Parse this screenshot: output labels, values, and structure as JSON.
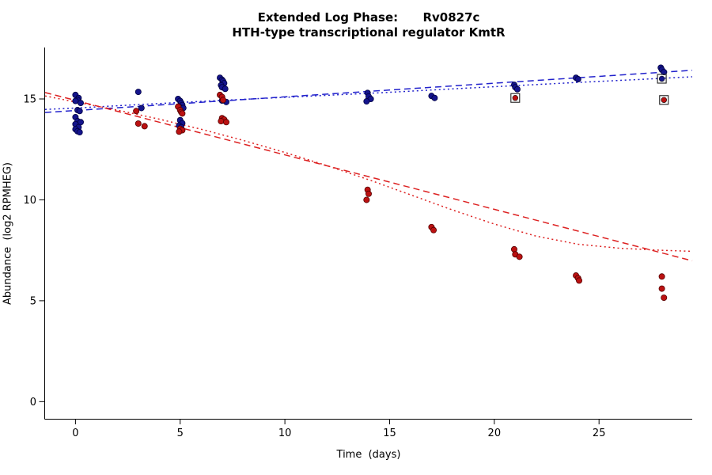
{
  "chart_data": {
    "type": "scatter",
    "title": "Extended Log Phase:      Rv0827c",
    "subtitle": "HTH-type transcriptional regulator KmtR",
    "xlabel": "Time  (days)",
    "ylabel": "Abundance  (log2 RPMHEG)",
    "xlim": [
      -1.45,
      29.45
    ],
    "ylim": [
      -0.85,
      17.55
    ],
    "xticks": [
      0,
      5,
      10,
      15,
      20,
      25
    ],
    "yticks": [
      0,
      5,
      10,
      15
    ],
    "grid": false,
    "legend": "none",
    "series": [
      {
        "name": "blue-condition",
        "color": "#14148C",
        "edge": "#000040",
        "points": [
          [
            0,
            15.2
          ],
          [
            0.15,
            15.05
          ],
          [
            0.1,
            14.95
          ],
          [
            0,
            14.9
          ],
          [
            0.25,
            14.8
          ],
          [
            0.1,
            14.45
          ],
          [
            0.2,
            14.4
          ],
          [
            0,
            14.1
          ],
          [
            0.1,
            13.9
          ],
          [
            0.25,
            13.85
          ],
          [
            0,
            13.75
          ],
          [
            0.15,
            13.6
          ],
          [
            0,
            13.5
          ],
          [
            0.1,
            13.4
          ],
          [
            0.2,
            13.35
          ],
          [
            3,
            15.35
          ],
          [
            3.15,
            14.55
          ],
          [
            4.9,
            15.0
          ],
          [
            5,
            14.9
          ],
          [
            5.05,
            14.8
          ],
          [
            5.1,
            14.7
          ],
          [
            4.95,
            14.62
          ],
          [
            5.15,
            14.55
          ],
          [
            5,
            13.95
          ],
          [
            5.1,
            13.8
          ],
          [
            4.95,
            13.68
          ],
          [
            5.05,
            13.6
          ],
          [
            6.9,
            16.05
          ],
          [
            7,
            15.95
          ],
          [
            7.05,
            15.88
          ],
          [
            7.1,
            15.78
          ],
          [
            6.95,
            15.68
          ],
          [
            7,
            15.58
          ],
          [
            7.15,
            15.5
          ],
          [
            7,
            14.92
          ],
          [
            7.2,
            14.85
          ],
          [
            13.95,
            15.3
          ],
          [
            14,
            15.12
          ],
          [
            14.1,
            15.0
          ],
          [
            13.9,
            14.88
          ],
          [
            17,
            15.15
          ],
          [
            17.15,
            15.05
          ],
          [
            20.95,
            15.7
          ],
          [
            21,
            15.58
          ],
          [
            21.1,
            15.48
          ],
          [
            23.9,
            16.05
          ],
          [
            24,
            15.98
          ],
          [
            27.95,
            16.55
          ],
          [
            28,
            16.45
          ],
          [
            28.1,
            16.33
          ]
        ]
      },
      {
        "name": "red-condition",
        "color": "#BB1111",
        "edge": "#550000",
        "points": [
          [
            2.9,
            14.4
          ],
          [
            3,
            13.78
          ],
          [
            3.3,
            13.65
          ],
          [
            4.9,
            14.62
          ],
          [
            5,
            14.45
          ],
          [
            5.05,
            14.35
          ],
          [
            5.1,
            14.28
          ],
          [
            5,
            13.52
          ],
          [
            5.1,
            13.45
          ],
          [
            4.95,
            13.38
          ],
          [
            6.9,
            15.2
          ],
          [
            7,
            15.1
          ],
          [
            7.05,
            14.95
          ],
          [
            7,
            14.05
          ],
          [
            7.1,
            13.98
          ],
          [
            6.95,
            13.9
          ],
          [
            7.2,
            13.85
          ],
          [
            13.95,
            10.5
          ],
          [
            14,
            10.3
          ],
          [
            13.9,
            10.0
          ],
          [
            17,
            8.65
          ],
          [
            17.1,
            8.5
          ],
          [
            20.95,
            7.55
          ],
          [
            21,
            7.3
          ],
          [
            21.2,
            7.18
          ],
          [
            23.9,
            6.25
          ],
          [
            24,
            6.12
          ],
          [
            24.05,
            6.0
          ],
          [
            28,
            6.2
          ],
          [
            28,
            5.6
          ],
          [
            28.1,
            5.15
          ]
        ]
      }
    ],
    "flagged_points": [
      {
        "x": 21,
        "y": 15.05,
        "color": "#BB1111"
      },
      {
        "x": 28,
        "y": 16.0,
        "color": "#14148C"
      },
      {
        "x": 28.1,
        "y": 14.95,
        "color": "#BB1111"
      }
    ],
    "trend_lines": [
      {
        "name": "blue-dashed-linear-fit",
        "color": "#2222CC",
        "dash": "dashed",
        "points": [
          [
            -1.45,
            14.33
          ],
          [
            29.45,
            16.42
          ]
        ]
      },
      {
        "name": "blue-dotted-fit",
        "color": "#2222CC",
        "dash": "dotted",
        "points": [
          [
            -1.45,
            14.48
          ],
          [
            0,
            14.55
          ],
          [
            3,
            14.72
          ],
          [
            6,
            14.88
          ],
          [
            9,
            15.03
          ],
          [
            12,
            15.18
          ],
          [
            15,
            15.33
          ],
          [
            18,
            15.5
          ],
          [
            21,
            15.66
          ],
          [
            24,
            15.82
          ],
          [
            27,
            15.97
          ],
          [
            29.45,
            16.1
          ]
        ]
      },
      {
        "name": "red-dashed-linear-fit",
        "color": "#DD2222",
        "dash": "dashed",
        "points": [
          [
            -1.45,
            15.32
          ],
          [
            29.45,
            6.98
          ]
        ]
      },
      {
        "name": "red-dotted-fit",
        "color": "#DD2222",
        "dash": "dotted",
        "points": [
          [
            -1.45,
            15.15
          ],
          [
            0,
            14.85
          ],
          [
            2,
            14.45
          ],
          [
            4,
            14.0
          ],
          [
            6,
            13.5
          ],
          [
            8,
            12.95
          ],
          [
            10,
            12.35
          ],
          [
            12,
            11.7
          ],
          [
            14,
            11.0
          ],
          [
            16,
            10.25
          ],
          [
            18,
            9.5
          ],
          [
            20,
            8.8
          ],
          [
            22,
            8.2
          ],
          [
            24,
            7.8
          ],
          [
            26,
            7.6
          ],
          [
            28,
            7.5
          ],
          [
            29.45,
            7.45
          ]
        ]
      }
    ]
  }
}
